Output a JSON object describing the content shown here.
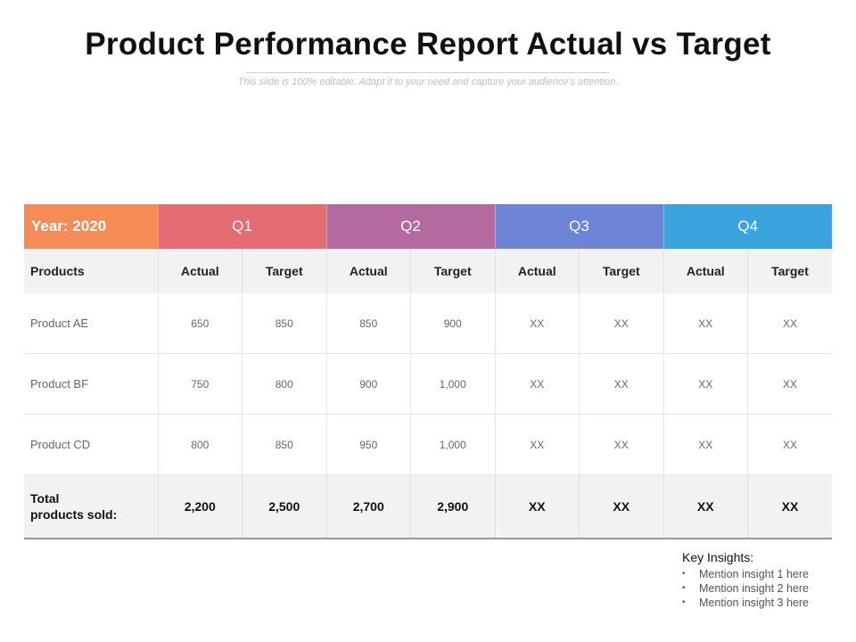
{
  "title": "Product Performance Report Actual vs Target",
  "subtitle": "This slide is 100% editable. Adapt it to your need and capture your audience's attention.",
  "table": {
    "year_label": "Year: 2020",
    "quarters": [
      "Q1",
      "Q2",
      "Q3",
      "Q4"
    ],
    "products_header": "Products",
    "actual_label": "Actual",
    "target_label": "Target",
    "rows": [
      {
        "product": "Product AE",
        "values": [
          "650",
          "850",
          "850",
          "900",
          "XX",
          "XX",
          "XX",
          "XX"
        ]
      },
      {
        "product": "Product BF",
        "values": [
          "750",
          "800",
          "900",
          "1,000",
          "XX",
          "XX",
          "XX",
          "XX"
        ]
      },
      {
        "product": "Product CD",
        "values": [
          "800",
          "850",
          "950",
          "1,000",
          "XX",
          "XX",
          "XX",
          "XX"
        ]
      }
    ],
    "total": {
      "label_line1": "Total",
      "label_line2": "products sold:",
      "values": [
        "2,200",
        "2,500",
        "2,700",
        "2,900",
        "XX",
        "XX",
        "XX",
        "XX"
      ]
    }
  },
  "insights": {
    "title": "Key Insights:",
    "items": [
      "Mention insight 1 here",
      "Mention insight 2  here",
      "Mention insight 3 here"
    ]
  },
  "colors": {
    "year": "#f58b57",
    "q1": "#e46c73",
    "q2": "#b46a9e",
    "q3": "#6d83d6",
    "q4": "#3aa3de"
  }
}
